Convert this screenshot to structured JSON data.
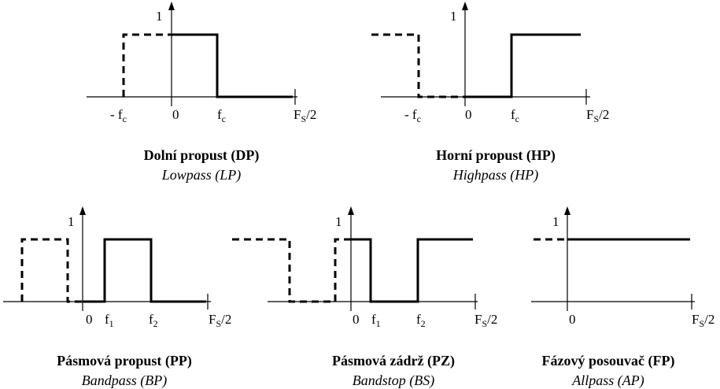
{
  "diagrams": [
    {
      "id": "lowpass",
      "title": "Dolní propust (DP)",
      "subtitle": "Lowpass (LP)",
      "y_label": "1",
      "x_labels": {
        "neg_fc": "- f",
        "neg_fc_sub": "c",
        "zero": "0",
        "fc": "f",
        "fc_sub": "c",
        "fs": "F",
        "fs_sub": "S",
        "fs_tail": "/2"
      }
    },
    {
      "id": "highpass",
      "title": "Horní propust (HP)",
      "subtitle": "Highpass (HP)",
      "y_label": "1",
      "x_labels": {
        "neg_fc": "- f",
        "neg_fc_sub": "c",
        "zero": "0",
        "fc": "f",
        "fc_sub": "c",
        "fs": "F",
        "fs_sub": "S",
        "fs_tail": "/2"
      }
    },
    {
      "id": "bandpass",
      "title": "Pásmová propust (PP)",
      "subtitle": "Bandpass (BP)",
      "y_label": "1",
      "x_labels": {
        "zero": "0",
        "f1": "f",
        "f1_sub": "1",
        "f2": "f",
        "f2_sub": "2",
        "fs": "F",
        "fs_sub": "S",
        "fs_tail": "/2"
      }
    },
    {
      "id": "bandstop",
      "title": "Pásmová zádrž (PZ)",
      "subtitle": "Bandstop (BS)",
      "y_label": "1",
      "x_labels": {
        "zero": "0",
        "f1": "f",
        "f1_sub": "1",
        "f2": "f",
        "f2_sub": "2",
        "fs": "F",
        "fs_sub": "S",
        "fs_tail": "/2"
      }
    },
    {
      "id": "allpass",
      "title": "Fázový posouvač (FP)",
      "subtitle": "Allpass (AP)",
      "y_label": "1",
      "x_labels": {
        "zero": "0",
        "fs": "F",
        "fs_sub": "S",
        "fs_tail": "/2"
      }
    }
  ]
}
